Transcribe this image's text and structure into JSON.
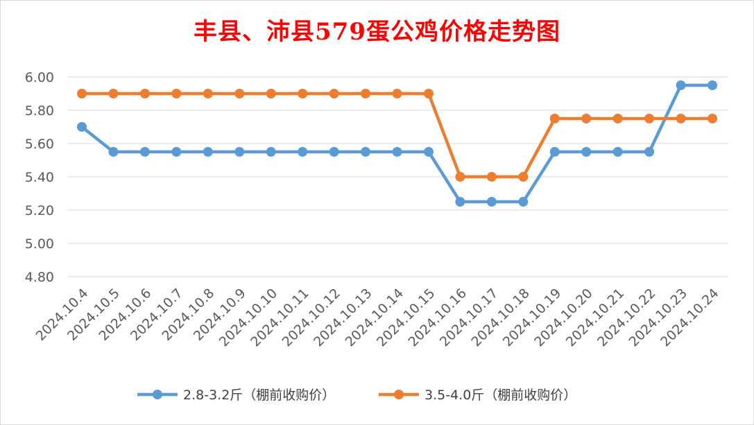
{
  "chart_data": {
    "type": "line",
    "title": "丰县、沛县579蛋公鸡价格走势图",
    "categories": [
      "2024.10.4",
      "2024.10.5",
      "2024.10.6",
      "2024.10.7",
      "2024.10.8",
      "2024.10.9",
      "2024.10.10",
      "2024.10.11",
      "2024.10.12",
      "2024.10.13",
      "2024.10.14",
      "2024.10.15",
      "2024.10.16",
      "2024.10.17",
      "2024.10.18",
      "2024.10.19",
      "2024.10.20",
      "2024.10.21",
      "2024.10.22",
      "2024.10.23",
      "2024.10.24"
    ],
    "series": [
      {
        "name": "2.8-3.2斤（棚前收购价）",
        "color": "#5b9bd5",
        "values": [
          5.7,
          5.55,
          5.55,
          5.55,
          5.55,
          5.55,
          5.55,
          5.55,
          5.55,
          5.55,
          5.55,
          5.55,
          5.25,
          5.25,
          5.25,
          5.55,
          5.55,
          5.55,
          5.55,
          5.95,
          5.95
        ]
      },
      {
        "name": "3.5-4.0斤（棚前收购价）",
        "color": "#ed7d31",
        "values": [
          5.9,
          5.9,
          5.9,
          5.9,
          5.9,
          5.9,
          5.9,
          5.9,
          5.9,
          5.9,
          5.9,
          5.9,
          5.4,
          5.4,
          5.4,
          5.75,
          5.75,
          5.75,
          5.75,
          5.75,
          5.75
        ]
      }
    ],
    "yticks": [
      "4.80",
      "5.00",
      "5.20",
      "5.40",
      "5.60",
      "5.80",
      "6.00"
    ],
    "ylim": [
      4.8,
      6.0
    ],
    "grid": true,
    "legend": "bottom"
  }
}
